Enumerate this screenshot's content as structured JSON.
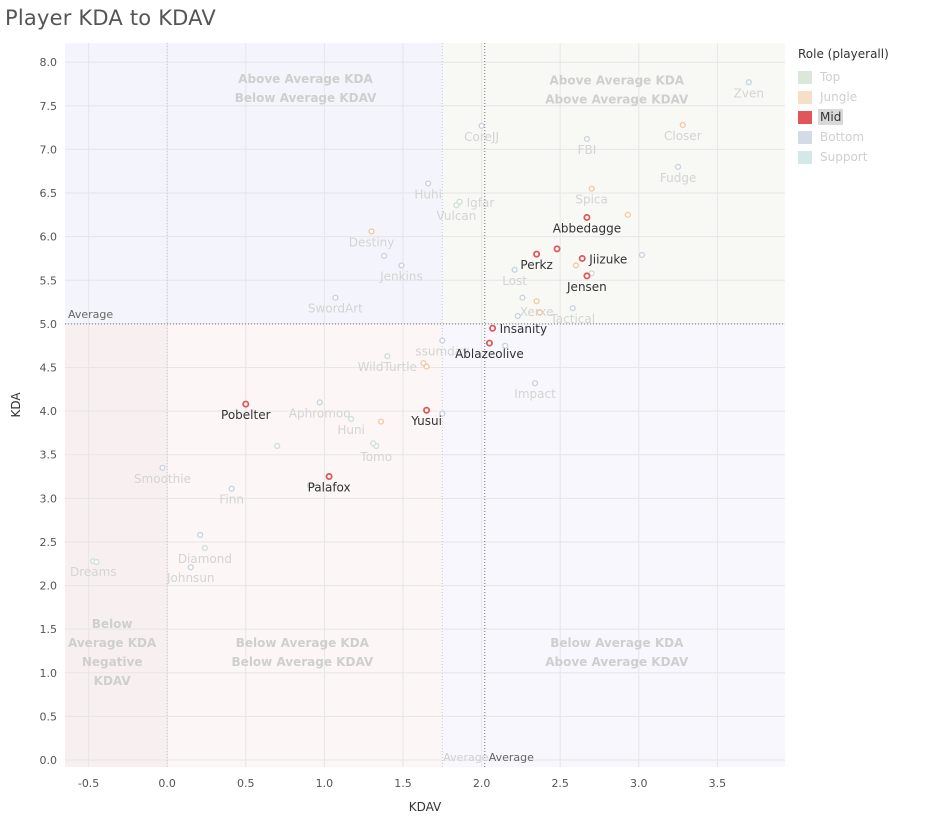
{
  "title": "Player KDA to KDAV",
  "legend": {
    "title": "Role (playerall)",
    "items": [
      {
        "label": "Top",
        "color": "#d9e8da",
        "active": false
      },
      {
        "label": "Jungle",
        "color": "#f7dfc7",
        "active": false
      },
      {
        "label": "Mid",
        "color": "#e15759",
        "active": true
      },
      {
        "label": "Bottom",
        "color": "#d3dce6",
        "active": false
      },
      {
        "label": "Support",
        "color": "#d4e8e8",
        "active": false
      }
    ]
  },
  "chart_data": {
    "type": "scatter",
    "title": "Player KDA to KDAV",
    "xlabel": "KDAV",
    "ylabel": "KDA",
    "xlim": [
      -0.65,
      3.93
    ],
    "ylim": [
      -0.08,
      8.22
    ],
    "xticks": [
      -0.5,
      0.0,
      0.5,
      1.0,
      1.5,
      2.0,
      2.5,
      3.0,
      3.5
    ],
    "yticks": [
      0.0,
      0.5,
      1.0,
      1.5,
      2.0,
      2.5,
      3.0,
      3.5,
      4.0,
      4.5,
      5.0,
      5.5,
      6.0,
      6.5,
      7.0,
      7.5,
      8.0
    ],
    "grid": true,
    "legend_position": "right",
    "reference_lines": [
      {
        "axis": "x",
        "value": 2.02,
        "label": "Average"
      },
      {
        "axis": "x",
        "value": 1.75,
        "label": "Average"
      },
      {
        "axis": "y",
        "value": 5.0,
        "label": "Average"
      },
      {
        "axis": "x",
        "value": 0.0,
        "label": ""
      }
    ],
    "quadrant_labels": [
      {
        "lines": [
          "Above Average KDA",
          "Below Average KDAV"
        ],
        "x": 0.88,
        "y": 7.7
      },
      {
        "lines": [
          "Above Average KDA",
          "Above Average KDAV"
        ],
        "x": 2.86,
        "y": 7.68
      },
      {
        "lines": [
          "Below Average KDA",
          "Below Average KDAV"
        ],
        "x": 0.86,
        "y": 1.23
      },
      {
        "lines": [
          "Below Average KDA",
          "Above Average KDAV"
        ],
        "x": 2.86,
        "y": 1.23
      },
      {
        "lines": [
          "Below",
          "Average KDA",
          "Negative",
          "KDAV"
        ],
        "x": -0.35,
        "y": 1.23
      }
    ],
    "series": [
      {
        "name": "Mid",
        "color": "#e15759",
        "points": [
          {
            "label": "Abbedagge",
            "x": 2.67,
            "y": 6.22
          },
          {
            "label": "Perkz",
            "x": 2.35,
            "y": 5.8
          },
          {
            "label": "",
            "x": 2.48,
            "y": 5.86
          },
          {
            "label": "Jiizuke",
            "x": 2.64,
            "y": 5.75
          },
          {
            "label": "Jensen",
            "x": 2.67,
            "y": 5.55
          },
          {
            "label": "Insanity",
            "x": 2.07,
            "y": 4.95
          },
          {
            "label": "Ablazeolive",
            "x": 2.05,
            "y": 4.78
          },
          {
            "label": "Pobelter",
            "x": 0.5,
            "y": 4.08
          },
          {
            "label": "Yusui",
            "x": 1.65,
            "y": 4.01
          },
          {
            "label": "Palafox",
            "x": 1.03,
            "y": 3.25
          }
        ]
      },
      {
        "name": "Top",
        "color": "#cfe0d0",
        "points": [
          {
            "label": "Igfar",
            "x": 1.86,
            "y": 6.4
          },
          {
            "label": "Vulcan",
            "x": 1.84,
            "y": 6.36
          },
          {
            "label": "WildTurtle",
            "x": 1.4,
            "y": 4.63
          },
          {
            "label": "Huni",
            "x": 1.17,
            "y": 3.91
          },
          {
            "label": "Tomo",
            "x": 1.33,
            "y": 3.6
          },
          {
            "label": "Diamond",
            "x": 0.24,
            "y": 2.43
          },
          {
            "label": "",
            "x": 0.7,
            "y": 3.6
          },
          {
            "label": "",
            "x": 2.7,
            "y": 5.58
          },
          {
            "label": "",
            "x": 1.31,
            "y": 3.63
          },
          {
            "label": "Dreams",
            "x": -0.47,
            "y": 2.28
          },
          {
            "label": "",
            "x": -0.45,
            "y": 2.27
          }
        ]
      },
      {
        "name": "Jungle",
        "color": "#f3c9a4",
        "points": [
          {
            "label": "Closer",
            "x": 3.28,
            "y": 7.28
          },
          {
            "label": "Spica",
            "x": 2.7,
            "y": 6.55
          },
          {
            "label": "",
            "x": 2.93,
            "y": 6.25
          },
          {
            "label": "Destiny",
            "x": 1.3,
            "y": 6.06
          },
          {
            "label": "",
            "x": 2.6,
            "y": 5.67
          },
          {
            "label": "Xerxe",
            "x": 2.35,
            "y": 5.26
          },
          {
            "label": "",
            "x": 2.37,
            "y": 5.13
          },
          {
            "label": "",
            "x": 1.36,
            "y": 3.88
          },
          {
            "label": "",
            "x": 1.63,
            "y": 4.55
          },
          {
            "label": "",
            "x": 1.65,
            "y": 4.51
          }
        ]
      },
      {
        "name": "Bottom",
        "color": "#c9d3df",
        "points": [
          {
            "label": "Zven",
            "x": 3.7,
            "y": 7.77
          },
          {
            "label": "CoreJJ",
            "x": 2.0,
            "y": 7.27
          },
          {
            "label": "FBI",
            "x": 2.67,
            "y": 7.12
          },
          {
            "label": "Fudge",
            "x": 3.25,
            "y": 6.8
          },
          {
            "label": "Huhi",
            "x": 1.66,
            "y": 6.61
          },
          {
            "label": "Jenkins",
            "x": 1.49,
            "y": 5.67
          },
          {
            "label": "",
            "x": 1.38,
            "y": 5.78
          },
          {
            "label": "",
            "x": 3.02,
            "y": 5.79
          },
          {
            "label": "Lost",
            "x": 2.21,
            "y": 5.62
          },
          {
            "label": "",
            "x": 2.26,
            "y": 5.3
          },
          {
            "label": "SwordArt",
            "x": 1.07,
            "y": 5.3
          },
          {
            "label": "Tactical",
            "x": 2.58,
            "y": 5.18
          },
          {
            "label": "",
            "x": 2.23,
            "y": 5.09
          },
          {
            "label": "ssumday",
            "x": 1.75,
            "y": 4.81
          },
          {
            "label": "",
            "x": 2.15,
            "y": 4.75
          },
          {
            "label": "Impact",
            "x": 2.34,
            "y": 4.32
          },
          {
            "label": "Aphromoo",
            "x": 0.97,
            "y": 4.1
          },
          {
            "label": "",
            "x": 1.75,
            "y": 3.97
          },
          {
            "label": "Smoothie",
            "x": -0.03,
            "y": 3.35
          },
          {
            "label": "Finn",
            "x": 0.41,
            "y": 3.11
          },
          {
            "label": "",
            "x": 0.91,
            "y": 3.15
          },
          {
            "label": "",
            "x": 0.21,
            "y": 2.58
          },
          {
            "label": "Johnsun",
            "x": 0.15,
            "y": 2.21
          }
        ]
      }
    ],
    "colors": {
      "region_upper_left": "#f4f4fc",
      "region_upper_right": "#f8f8f4",
      "region_lower_left": "#fcf6f6",
      "region_lower_right": "#f7f7fd",
      "region_negative": "#f8f0f0"
    }
  }
}
